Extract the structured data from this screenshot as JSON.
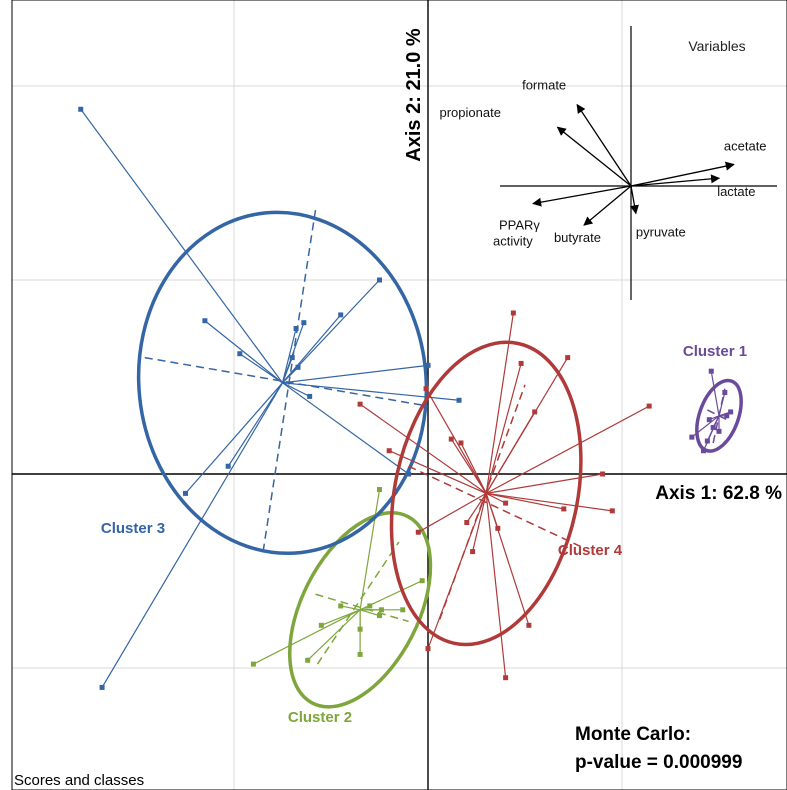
{
  "chart_data": {
    "type": "scatter",
    "subtype": "PCA score plot with class star-plots and ellipses",
    "axis1_label": "Axis 1: 62.8 %",
    "axis2_label": "Axis 2: 21.0 %",
    "panel_label": "Scores and classes",
    "test_title": "Monte Carlo:",
    "test_value": "p-value = 0.000999",
    "grid": true,
    "xlim": [
      -2.2,
      1.85
    ],
    "ylim": [
      -1.6,
      2.4
    ],
    "colors": {
      "cluster1": "#6a4a9a",
      "cluster2": "#7ea63c",
      "cluster3": "#3465a4",
      "cluster4": "#b03a3a",
      "axis": "#000000",
      "grid": "#d9d9d9"
    },
    "clusters": [
      {
        "name": "Cluster 1",
        "color_key": "cluster1",
        "center": [
          1.5,
          0.3
        ],
        "ellipse": {
          "rx": 0.1,
          "ry": 0.19,
          "angle": 20
        },
        "dashed_axes": [
          [
            [
              1.47,
              0.16
            ],
            [
              1.53,
              0.44
            ]
          ],
          [
            [
              1.44,
              0.33
            ],
            [
              1.56,
              0.27
            ]
          ]
        ],
        "points": [
          [
            1.46,
            0.53
          ],
          [
            1.53,
            0.42
          ],
          [
            1.56,
            0.32
          ],
          [
            1.54,
            0.3
          ],
          [
            1.36,
            0.19
          ],
          [
            1.47,
            0.24
          ],
          [
            1.42,
            0.12
          ],
          [
            1.44,
            0.17
          ],
          [
            1.5,
            0.22
          ],
          [
            1.45,
            0.28
          ]
        ]
      },
      {
        "name": "Cluster 2",
        "color_key": "cluster2",
        "center": [
          -0.35,
          -0.7
        ],
        "ellipse": {
          "rx": 0.3,
          "ry": 0.54,
          "angle": 27
        },
        "dashed_axes": [
          [
            [
              -0.57,
              -0.98
            ],
            [
              -0.15,
              -0.35
            ]
          ],
          [
            [
              -0.58,
              -0.62
            ],
            [
              -0.1,
              -0.76
            ]
          ]
        ],
        "points": [
          [
            -0.25,
            -0.08
          ],
          [
            -0.45,
            -0.68
          ],
          [
            -0.55,
            -0.78
          ],
          [
            -0.62,
            -0.96
          ],
          [
            -0.35,
            -0.93
          ],
          [
            -0.35,
            -0.8
          ],
          [
            -0.25,
            -0.73
          ],
          [
            -0.13,
            -0.7
          ],
          [
            -0.9,
            -0.98
          ],
          [
            -0.03,
            -0.55
          ],
          [
            -0.24,
            -0.7
          ],
          [
            -0.3,
            -0.68
          ]
        ]
      },
      {
        "name": "Cluster 3",
        "color_key": "cluster3",
        "center": [
          -0.75,
          0.47
        ],
        "ellipse": {
          "rx": 0.74,
          "ry": 0.88,
          "angle": -6
        },
        "dashed_axes": [
          [
            [
              -0.85,
              -0.4
            ],
            [
              -0.58,
              1.36
            ]
          ],
          [
            [
              -1.46,
              0.6
            ],
            [
              0.0,
              0.35
            ]
          ]
        ],
        "points": [
          [
            -1.79,
            1.88
          ],
          [
            -1.15,
            0.79
          ],
          [
            -0.97,
            0.62
          ],
          [
            -0.68,
            0.75
          ],
          [
            -0.64,
            0.78
          ],
          [
            -0.67,
            0.55
          ],
          [
            -0.45,
            0.82
          ],
          [
            -0.25,
            1.0
          ],
          [
            0.0,
            0.56
          ],
          [
            0.16,
            0.38
          ],
          [
            -0.61,
            0.4
          ],
          [
            -1.25,
            -0.1
          ],
          [
            -1.03,
            0.04
          ],
          [
            -0.1,
            0.0
          ],
          [
            -1.68,
            -1.1
          ],
          [
            -0.7,
            0.6
          ]
        ]
      },
      {
        "name": "Cluster 4",
        "color_key": "cluster4",
        "center": [
          0.3,
          -0.1
        ],
        "ellipse": {
          "rx": 0.47,
          "ry": 0.79,
          "angle": 12
        },
        "dashed_axes": [
          [
            [
              0.06,
              -0.75
            ],
            [
              0.5,
              0.46
            ]
          ],
          [
            [
              -0.1,
              0.04
            ],
            [
              0.8,
              -0.38
            ]
          ]
        ],
        "points": [
          [
            0.44,
            0.83
          ],
          [
            -0.01,
            0.44
          ],
          [
            -0.35,
            0.36
          ],
          [
            -0.2,
            0.12
          ],
          [
            0.12,
            0.18
          ],
          [
            0.48,
            0.57
          ],
          [
            0.55,
            0.32
          ],
          [
            0.72,
            0.6
          ],
          [
            0.2,
            -0.25
          ],
          [
            1.14,
            0.35
          ],
          [
            0.52,
            -0.78
          ],
          [
            0.4,
            -1.05
          ],
          [
            0.0,
            -0.9
          ],
          [
            0.17,
            0.16
          ],
          [
            0.9,
            0.0
          ],
          [
            0.95,
            -0.19
          ],
          [
            0.4,
            -0.15
          ],
          [
            0.7,
            -0.18
          ],
          [
            0.36,
            -0.28
          ],
          [
            -0.05,
            -0.3
          ],
          [
            0.23,
            -0.4
          ]
        ]
      }
    ],
    "variables_panel": {
      "title": "Variables",
      "variables": [
        {
          "name": "formate",
          "vector": [
            -0.55,
            0.83
          ]
        },
        {
          "name": "propionate",
          "vector": [
            -0.75,
            0.6
          ]
        },
        {
          "name": "acetate",
          "vector": [
            1.05,
            0.22
          ]
        },
        {
          "name": "lactate",
          "vector": [
            0.9,
            0.08
          ]
        },
        {
          "name": "PPARγ",
          "name_line2": "activity",
          "vector": [
            -1.0,
            -0.18
          ]
        },
        {
          "name": "butyrate",
          "vector": [
            -0.48,
            -0.4
          ]
        },
        {
          "name": "pyruvate",
          "vector": [
            0.05,
            -0.28
          ]
        }
      ]
    }
  }
}
